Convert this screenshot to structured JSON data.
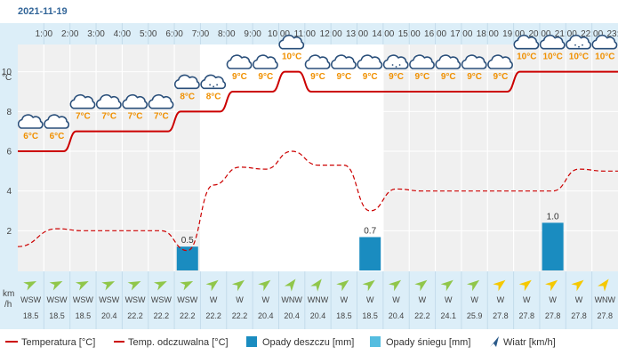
{
  "date": "2021-11-19",
  "hours": [
    "1:00",
    "2:00",
    "3:00",
    "4:00",
    "5:00",
    "6:00",
    "7:00",
    "8:00",
    "9:00",
    "10:00",
    "11:00",
    "12:00",
    "13:00",
    "14:00",
    "15:00",
    "16:00",
    "17:00",
    "18:00",
    "19:00",
    "20:00",
    "21:00",
    "22:00",
    "23:00"
  ],
  "colors": {
    "header_bg": "#dceef8",
    "panel_bg": "#f0f0f0",
    "day_bg": "#ffffff",
    "grid": "#ffffff",
    "temp": "#cc0000",
    "feels": "#cc0000",
    "rain": "#1a8cc0",
    "snow": "#55bde0",
    "label_orange": "#f09000",
    "wind_green": "#90c64a",
    "wind_yellow": "#f5c800",
    "text": "#444444",
    "date_blue": "#336699"
  },
  "chart_data": {
    "type": "line",
    "y_unit": "°C",
    "y_ticks": [
      2,
      4,
      6,
      8,
      10
    ],
    "ylim": [
      0,
      12
    ],
    "series": [
      {
        "name": "Temperatura [°C]",
        "values": [
          6,
          6,
          7,
          7,
          7,
          7,
          8,
          8,
          9,
          9,
          10,
          9,
          9,
          9,
          9,
          9,
          9,
          9,
          9,
          10,
          10,
          10,
          10
        ]
      },
      {
        "name": "Temp. odczuwalna [°C]",
        "values": [
          1.2,
          2.1,
          2.0,
          2.0,
          2.0,
          2.0,
          1.0,
          4.3,
          5.2,
          5.1,
          6.0,
          5.3,
          5.3,
          3.0,
          4.1,
          4.0,
          4.0,
          4.0,
          4.0,
          4.0,
          4.0,
          5.1,
          5.0
        ]
      },
      {
        "name": "Opady deszczu [mm]",
        "values": [
          0,
          0,
          0,
          0,
          0,
          0,
          0.5,
          0,
          0,
          0,
          0,
          0,
          0,
          0.7,
          0,
          0,
          0,
          0,
          0,
          0,
          1.0,
          0,
          0
        ]
      },
      {
        "name": "Opady śniegu [mm]",
        "values": [
          0,
          0,
          0,
          0,
          0,
          0,
          0,
          0,
          0,
          0,
          0,
          0,
          0,
          0,
          0,
          0,
          0,
          0,
          0,
          0,
          0,
          0,
          0
        ]
      }
    ],
    "temp_labels": [
      "6°C",
      "6°C",
      "7°C",
      "7°C",
      "7°C",
      "7°C",
      "8°C",
      "8°C",
      "9°C",
      "9°C",
      "10°C",
      "9°C",
      "9°C",
      "9°C",
      "9°C",
      "9°C",
      "9°C",
      "9°C",
      "9°C",
      "10°C",
      "10°C",
      "10°C",
      "10°C"
    ],
    "precip_labels": [
      "",
      "",
      "",
      "",
      "",
      "",
      "0.5",
      "",
      "",
      "",
      "",
      "",
      "",
      "0.7",
      "",
      "",
      "",
      "",
      "",
      "",
      "1.0",
      "",
      ""
    ],
    "weather_icons": [
      "cloud-icon",
      "cloud-icon",
      "cloud-icon",
      "cloud-icon",
      "cloud-icon",
      "cloud-icon",
      "cloud-icon",
      "cloud-drizzle-icon",
      "cloud-icon",
      "cloud-icon",
      "cloud-icon",
      "cloud-icon",
      "cloud-icon",
      "cloud-icon",
      "cloud-drizzle-icon",
      "cloud-icon",
      "cloud-icon",
      "cloud-icon",
      "cloud-icon",
      "cloud-icon",
      "cloud-icon",
      "cloud-drizzle-icon",
      "cloud-icon"
    ],
    "wind": {
      "unit_label": "km\n/h",
      "directions": [
        "WSW",
        "WSW",
        "WSW",
        "WSW",
        "WSW",
        "WSW",
        "WSW",
        "W",
        "W",
        "W",
        "WNW",
        "WNW",
        "W",
        "W",
        "W",
        "W",
        "W",
        "W",
        "W",
        "W",
        "W",
        "W",
        "WNW"
      ],
      "speeds": [
        "18.5",
        "18.5",
        "18.5",
        "20.4",
        "22.2",
        "22.2",
        "22.2",
        "22.2",
        "22.2",
        "20.4",
        "20.4",
        "20.4",
        "18.5",
        "18.5",
        "20.4",
        "22.2",
        "24.1",
        "25.9",
        "27.8",
        "27.8",
        "27.8",
        "27.8",
        "27.8"
      ],
      "arrow_colors": [
        "green",
        "green",
        "green",
        "green",
        "green",
        "green",
        "green",
        "green",
        "green",
        "green",
        "green",
        "green",
        "green",
        "green",
        "green",
        "green",
        "green",
        "green",
        "yellow",
        "yellow",
        "yellow",
        "yellow",
        "yellow"
      ]
    },
    "daylight_hours": [
      7,
      14
    ]
  },
  "legend": {
    "temp": "Temperatura [°C]",
    "feels": "Temp. odczuwalna [°C]",
    "rain": "Opady deszczu [mm]",
    "snow": "Opady śniegu [mm]",
    "wind": "Wiatr [km/h]"
  }
}
